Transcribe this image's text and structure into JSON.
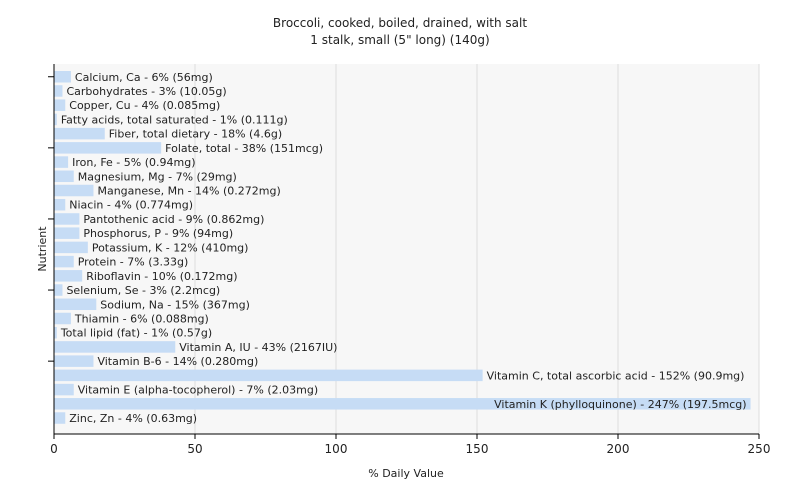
{
  "chart_data": {
    "type": "bar",
    "orientation": "horizontal",
    "title": "Broccoli, cooked, boiled, drained, with salt",
    "subtitle": "1 stalk, small (5\" long) (140g)",
    "xlabel": "% Daily Value",
    "ylabel": "Nutrient",
    "xlim": [
      0,
      250
    ],
    "xticks": [
      "0",
      "50",
      "100",
      "150",
      "200",
      "250"
    ],
    "grid": true,
    "bar_color": "#c6dcf5",
    "categories": [
      "Calcium, Ca",
      "Carbohydrates",
      "Copper, Cu",
      "Fatty acids, total saturated",
      "Fiber, total dietary",
      "Folate, total",
      "Iron, Fe",
      "Magnesium, Mg",
      "Manganese, Mn",
      "Niacin",
      "Pantothenic acid",
      "Phosphorus, P",
      "Potassium, K",
      "Protein",
      "Riboflavin",
      "Selenium, Se",
      "Sodium, Na",
      "Thiamin",
      "Total lipid (fat)",
      "Vitamin A, IU",
      "Vitamin B-6",
      "Vitamin C, total ascorbic acid",
      "Vitamin E (alpha-tocopherol)",
      "Vitamin K (phylloquinone)",
      "Zinc, Zn"
    ],
    "values": [
      6,
      3,
      4,
      1,
      18,
      38,
      5,
      7,
      14,
      4,
      9,
      9,
      12,
      7,
      10,
      3,
      15,
      6,
      1,
      43,
      14,
      152,
      7,
      247,
      4
    ],
    "labels": [
      "Calcium, Ca - 6% (56mg)",
      "Carbohydrates - 3% (10.05g)",
      "Copper, Cu - 4% (0.085mg)",
      "Fatty acids, total saturated - 1% (0.111g)",
      "Fiber, total dietary - 18% (4.6g)",
      "Folate, total - 38% (151mcg)",
      "Iron, Fe - 5% (0.94mg)",
      "Magnesium, Mg - 7% (29mg)",
      "Manganese, Mn - 14% (0.272mg)",
      "Niacin - 4% (0.774mg)",
      "Pantothenic acid - 9% (0.862mg)",
      "Phosphorus, P - 9% (94mg)",
      "Potassium, K - 12% (410mg)",
      "Protein - 7% (3.33g)",
      "Riboflavin - 10% (0.172mg)",
      "Selenium, Se - 3% (2.2mcg)",
      "Sodium, Na - 15% (367mg)",
      "Thiamin - 6% (0.088mg)",
      "Total lipid (fat) - 1% (0.57g)",
      "Vitamin A, IU - 43% (2167IU)",
      "Vitamin B-6 - 14% (0.280mg)",
      "Vitamin C, total ascorbic acid - 152% (90.9mg)",
      "Vitamin E (alpha-tocopherol) - 7% (2.03mg)",
      "Vitamin K (phylloquinone) - 247% (197.5mcg)",
      "Zinc, Zn - 4% (0.63mg)"
    ]
  }
}
